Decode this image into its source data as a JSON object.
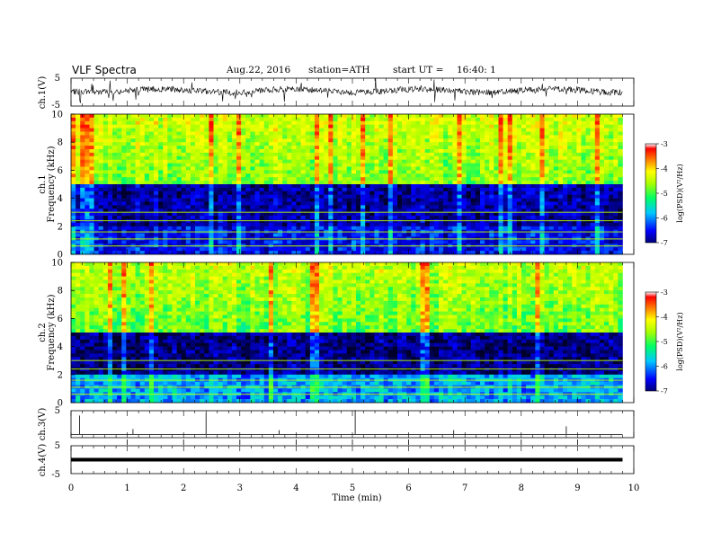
{
  "header": {
    "title": "VLF Spectra",
    "date": "Aug.22, 2016",
    "station": "station=ATH",
    "start_label": "start UT =",
    "start_time": "16:40: 1"
  },
  "colorbar": {
    "label": "log(PSD)(V²/Hz)",
    "ticks": [
      "-3",
      "-4",
      "-5",
      "-6",
      "-7"
    ],
    "range": [
      -7,
      -3
    ]
  },
  "chart_data": [
    {
      "type": "line",
      "panel": "ch1-waveform",
      "ylabel": "ch.1(V)",
      "ylim": [
        -5,
        5
      ],
      "yticks": [
        "5",
        "-5"
      ],
      "xlim": [
        0,
        10
      ],
      "description_values": {
        "baseline": 0.5
      }
    },
    {
      "type": "heatmap",
      "panel": "ch1-spectrogram",
      "ylabel": "ch.1",
      "ylabel2": "Frequency (kHz)",
      "ylim": [
        0,
        10
      ],
      "yticks": [
        "0",
        "2",
        "4",
        "6",
        "8",
        "10"
      ],
      "xlim": [
        0,
        9.8
      ],
      "band_values": {
        "upper_4_10kHz": -4.8,
        "mid_2_4kHz": -6.6,
        "lower_0_2kHz": -6.3
      }
    },
    {
      "type": "heatmap",
      "panel": "ch2-spectrogram",
      "ylabel": "ch.2",
      "ylabel2": "Frequency (kHz)",
      "ylim": [
        0,
        10
      ],
      "yticks": [
        "0",
        "2",
        "4",
        "6",
        "8",
        "10"
      ],
      "xlim": [
        0,
        9.8
      ],
      "band_values": {
        "upper_5_10kHz": -4.9,
        "mid_2_5kHz": -6.7,
        "lower_0_2kHz": -5.8
      }
    },
    {
      "type": "line",
      "panel": "ch3-waveform",
      "ylabel": "ch.3(V)",
      "ylim": [
        -5,
        5
      ],
      "yticks": [
        "5"
      ],
      "xlim": [
        0,
        10
      ],
      "spikes_min": [
        0.15,
        1.1,
        2.4,
        3.7,
        5.05,
        6.8,
        8.8
      ],
      "spike_heights": [
        3.5,
        1.0,
        4.0,
        0.8,
        4.5,
        0.8,
        1.5
      ]
    },
    {
      "type": "line",
      "panel": "ch4-waveform",
      "ylabel": "ch.4(V)",
      "ylim": [
        -5,
        5
      ],
      "yticks": [
        "5",
        "-5"
      ],
      "xlim": [
        0,
        10
      ],
      "level": 0.0,
      "ticks_min": [
        1,
        2,
        3,
        4,
        5,
        6,
        7,
        8,
        9
      ]
    }
  ],
  "xaxis": {
    "label": "Time (min)",
    "ticks": [
      "0",
      "1",
      "2",
      "3",
      "4",
      "5",
      "6",
      "7",
      "8",
      "9",
      "10"
    ],
    "range": [
      0,
      10
    ]
  }
}
